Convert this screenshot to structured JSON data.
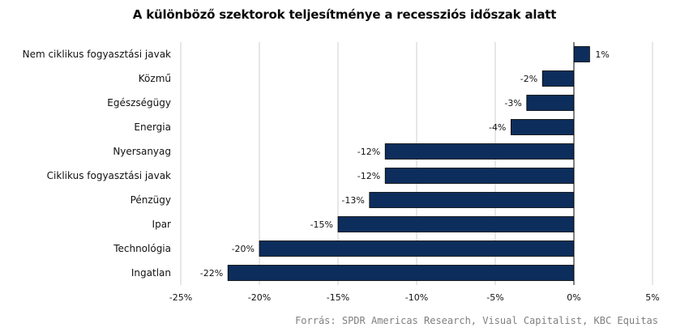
{
  "chart_data": {
    "type": "bar",
    "orientation": "horizontal",
    "title": "A különböző szektorok teljesítménye  a recessziós időszak alatt",
    "categories": [
      "Nem ciklikus fogyasztási javak",
      "Közmű",
      "Egészségügy",
      "Energia",
      "Nyersanyag",
      "Ciklikus fogyasztási javak",
      "Pénzügy",
      "Ipar",
      "Technológia",
      "Ingatlan"
    ],
    "values": [
      1,
      -2,
      -3,
      -4,
      -12,
      -12,
      -13,
      -15,
      -20,
      -22
    ],
    "value_labels": [
      "1%",
      "-2%",
      "-3%",
      "-4%",
      "-12%",
      "-12%",
      "-13%",
      "-15%",
      "-20%",
      "-22%"
    ],
    "xlim": [
      -25,
      5
    ],
    "xticks": [
      -25,
      -20,
      -15,
      -10,
      -5,
      0,
      5
    ],
    "xtick_labels": [
      "-25%",
      "-20%",
      "-15%",
      "-10%",
      "-5%",
      "0%",
      "5%"
    ],
    "grid": "vertical",
    "legend": "none",
    "bar_color": "#0d2e5c",
    "grid_color": "#cfcfcf",
    "axis_color": "#000000"
  },
  "source": "Forrás: SPDR Americas Research, Visual Capitalist, KBC Equitas"
}
